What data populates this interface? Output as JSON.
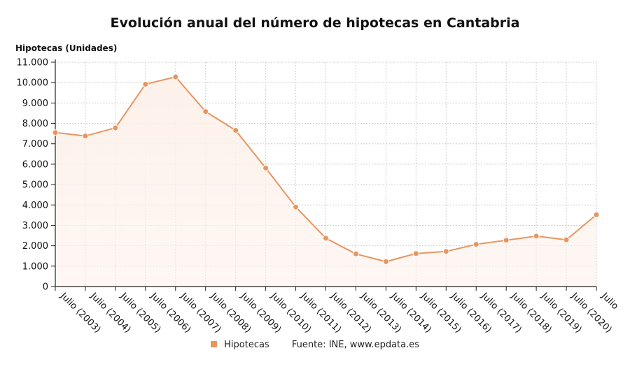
{
  "title": "Evolución anual del número de hipotecas en Cantabria",
  "legend": {
    "series_name": "Hipotecas",
    "source": "Fuente: INE, www.epdata.es"
  },
  "colors": {
    "line": "#e8955f",
    "point": "#e8955f",
    "area": "#fdf1ea",
    "grid": "#cfcfcf",
    "axis": "#222222"
  },
  "chart_data": {
    "type": "area",
    "title": "Evolución anual del número de hipotecas en Cantabria",
    "ylabel": "Hipotecas (Unidades)",
    "xlabel": "",
    "ylim": [
      0,
      11000
    ],
    "yticks": [
      "0",
      "1.000",
      "2.000",
      "3.000",
      "4.000",
      "5.000",
      "6.000",
      "7.000",
      "8.000",
      "9.000",
      "10.000",
      "11.000"
    ],
    "grid": true,
    "legend_position": "bottom",
    "categories": [
      "Julio (2003)",
      "Julio (2004)",
      "Julio (2005)",
      "Julio (2006)",
      "Julio (2007)",
      "Julio (2008)",
      "Julio (2009)",
      "Julio (2010)",
      "Julio (2011)",
      "Julio (2012)",
      "Julio (2013)",
      "Julio (2014)",
      "Julio (2015)",
      "Julio (2016)",
      "Julio (2017)",
      "Julio (2018)",
      "Julio (2019)",
      "Julio (2020)",
      "Julio"
    ],
    "series": [
      {
        "name": "Hipotecas",
        "values": [
          7550,
          7380,
          7780,
          9920,
          10280,
          8580,
          7660,
          5810,
          3900,
          2370,
          1600,
          1220,
          1620,
          1720,
          2070,
          2270,
          2470,
          2290,
          3520
        ]
      }
    ]
  }
}
